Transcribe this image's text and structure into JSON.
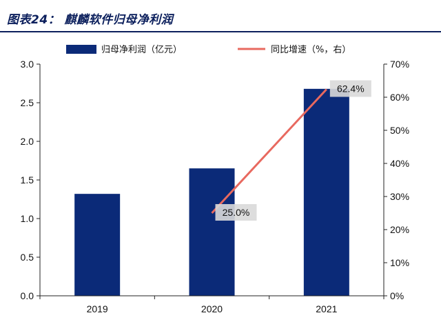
{
  "header": {
    "title": "图表24：  麒麟软件归母净利润"
  },
  "chart_data": {
    "type": "bar",
    "title": "图表24：  麒麟软件归母净利润",
    "categories": [
      "2019",
      "2020",
      "2021"
    ],
    "series": [
      {
        "name": "归母净利润（亿元）",
        "type": "bar",
        "axis": "left",
        "color": "#0b2a78",
        "values": [
          1.32,
          1.65,
          2.68
        ]
      },
      {
        "name": "同比增速（%，右）",
        "type": "line",
        "axis": "right",
        "color": "#e8695f",
        "values": [
          null,
          25.0,
          62.4
        ]
      }
    ],
    "left_axis": {
      "ylim": [
        0,
        3.0
      ],
      "ticks": [
        "0.0",
        "0.5",
        "1.0",
        "1.5",
        "2.0",
        "2.5",
        "3.0"
      ]
    },
    "right_axis": {
      "ylim": [
        0,
        70
      ],
      "ticks": [
        "0%",
        "10%",
        "20%",
        "30%",
        "40%",
        "50%",
        "60%",
        "70%"
      ]
    },
    "data_labels": [
      "25.0%",
      "62.4%"
    ],
    "legend_position": "top",
    "grid": false
  }
}
